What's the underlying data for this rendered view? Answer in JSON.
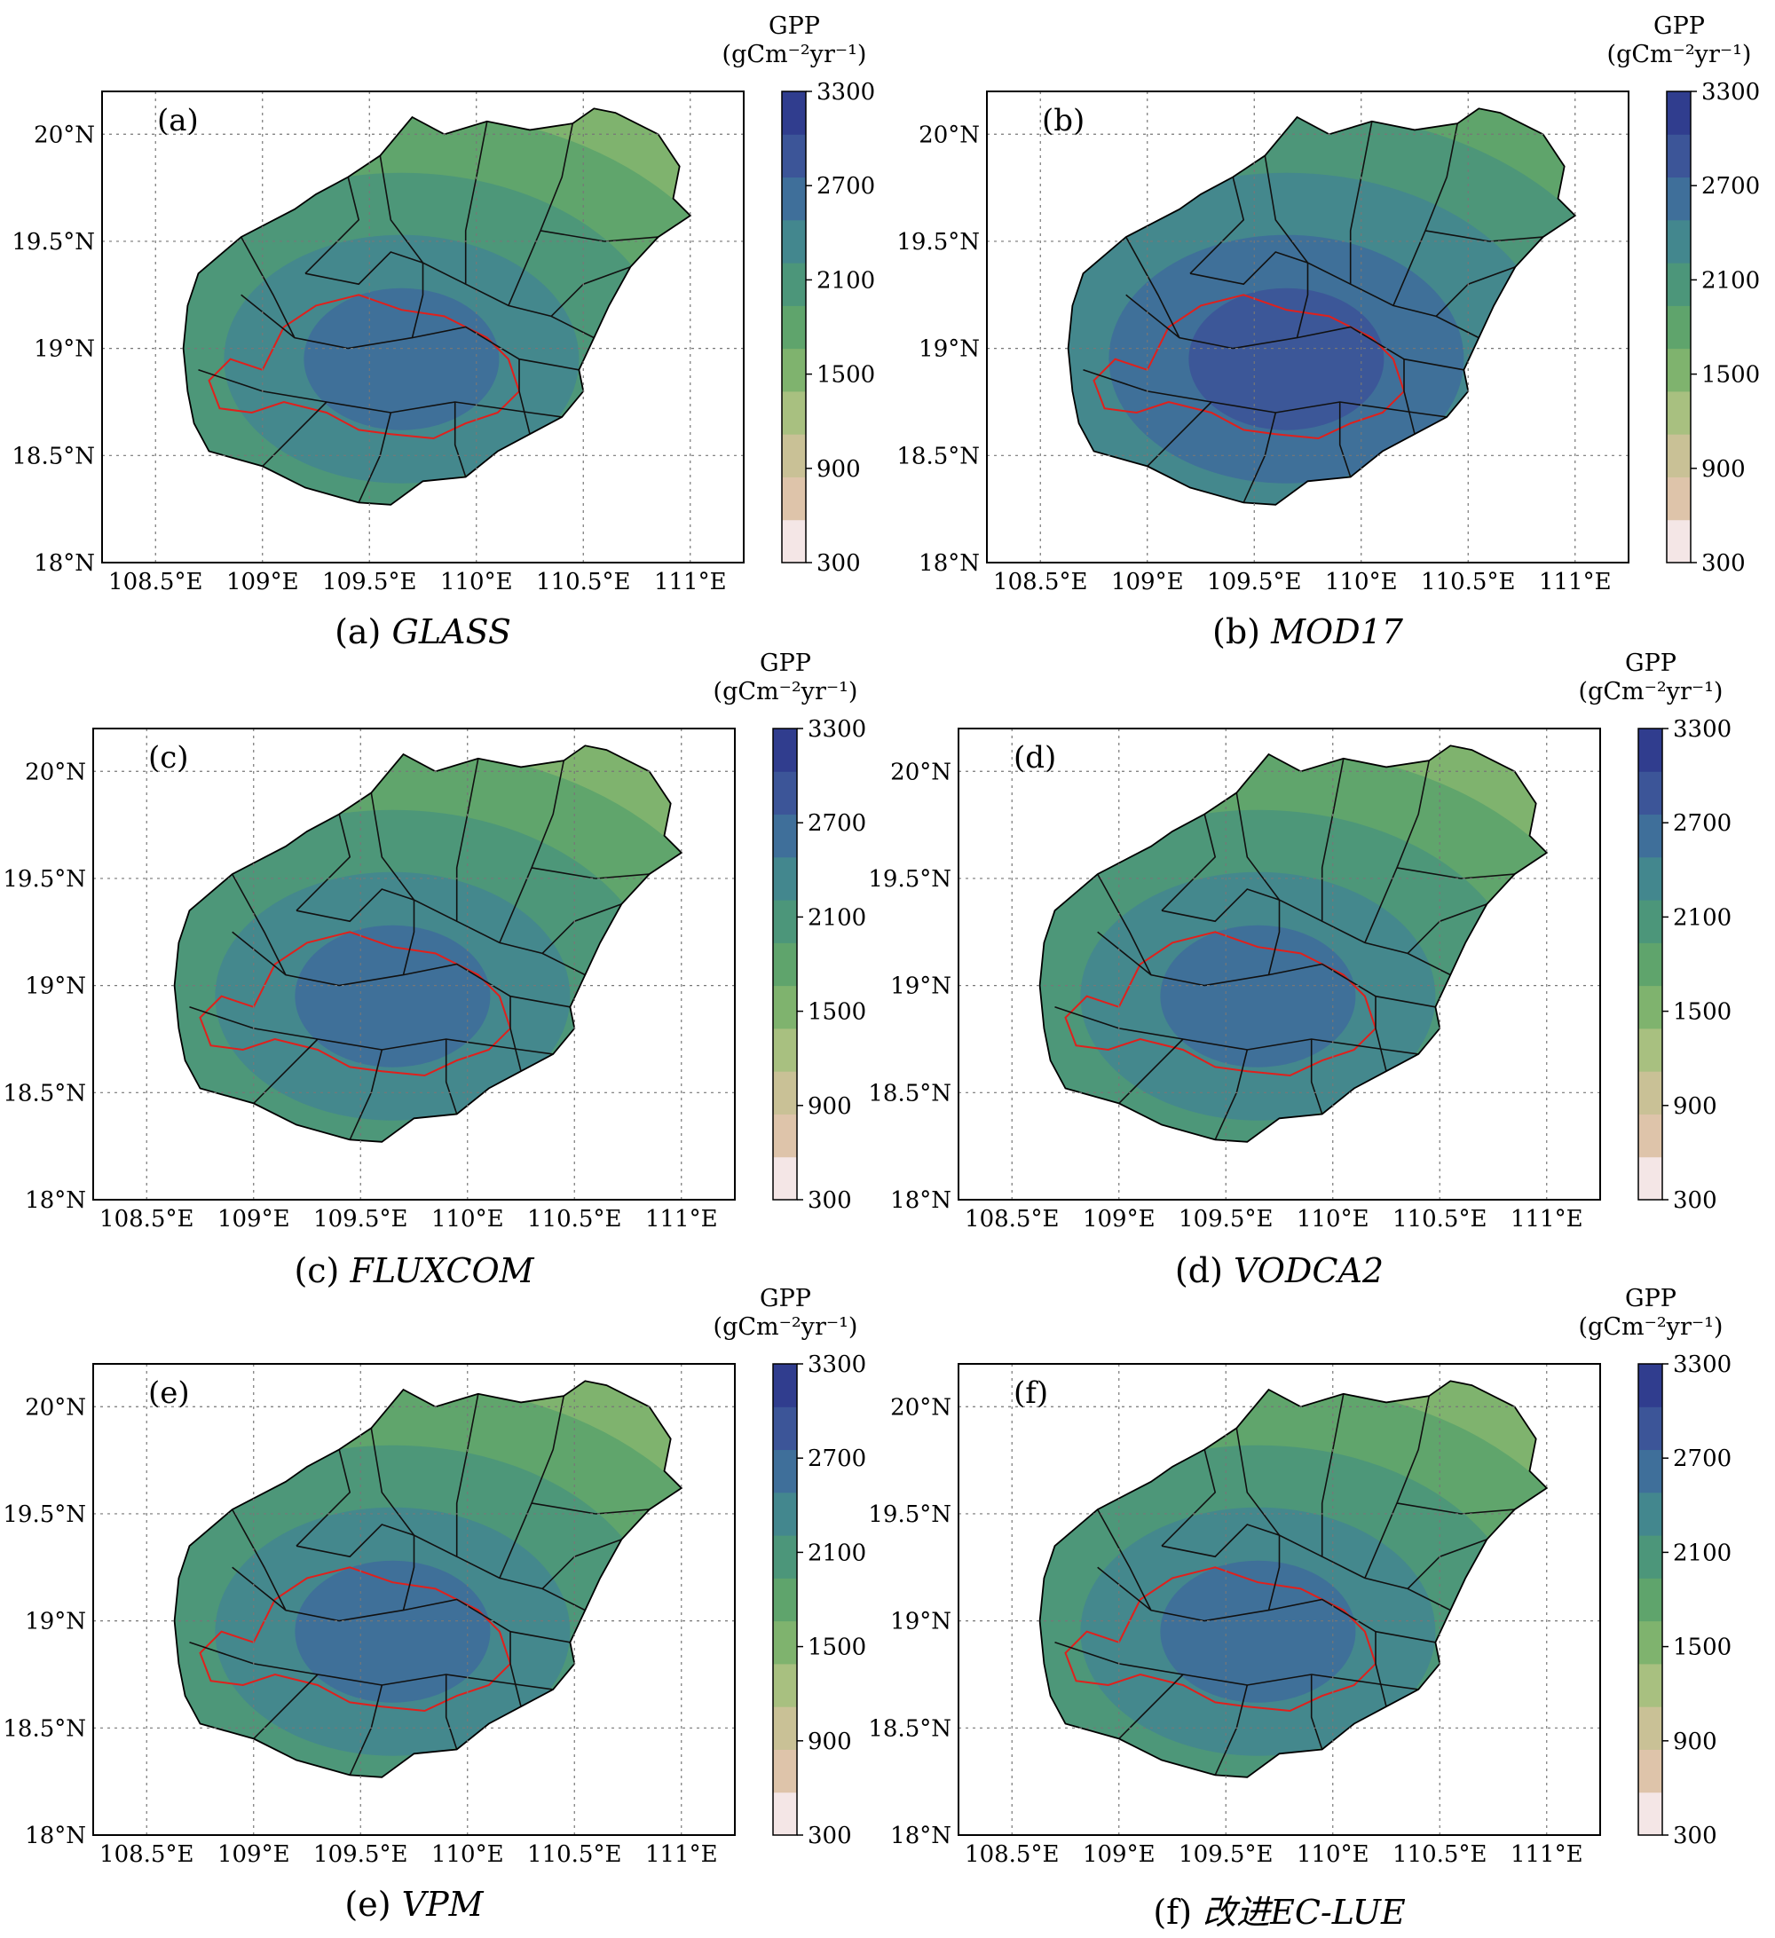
{
  "colorbar": {
    "title": "GPP",
    "unit": "(gCm⁻²yr⁻¹)",
    "ticks": [
      3300,
      2700,
      2100,
      1500,
      900,
      300
    ],
    "range": [
      300,
      3300
    ],
    "colors": [
      "#f4e6e6",
      "#dec4aa",
      "#c9c196",
      "#a8c080",
      "#7fb36e",
      "#5fa46c",
      "#4c967a",
      "#43878e",
      "#3f6f9a",
      "#3c5598",
      "#303d8e"
    ]
  },
  "axes": {
    "lon_labels": [
      "108.5°E",
      "109°E",
      "109.5°E",
      "110°E",
      "110.5°E",
      "111°E"
    ],
    "lon_values": [
      108.5,
      109.0,
      109.5,
      110.0,
      110.5,
      111.0
    ],
    "lat_labels": [
      "20°N",
      "19.5°N",
      "19°N",
      "18.5°N",
      "18°N"
    ],
    "lat_values": [
      20.0,
      19.5,
      19.0,
      18.5,
      18.0
    ],
    "lon_range": [
      108.25,
      111.25
    ],
    "lat_range": [
      18.0,
      20.2
    ],
    "grid": "dotted"
  },
  "panels": [
    {
      "id": "a",
      "label": "(a)",
      "caption_prefix": "(a)",
      "caption_name": "GLASS",
      "level": 0.55
    },
    {
      "id": "b",
      "label": "(b)",
      "caption_prefix": "(b)",
      "caption_name": "MOD17",
      "level": 0.72
    },
    {
      "id": "c",
      "label": "(c)",
      "caption_prefix": "(c)",
      "caption_name": "FLUXCOM",
      "level": 0.58
    },
    {
      "id": "d",
      "label": "(d)",
      "caption_prefix": "(d)",
      "caption_name": "VODCA2",
      "level": 0.62
    },
    {
      "id": "e",
      "label": "(e)",
      "caption_prefix": "(e)",
      "caption_name": "VPM",
      "level": 0.64
    },
    {
      "id": "f",
      "label": "(f)",
      "caption_prefix": "(f)",
      "caption_name": "改进EC-LUE",
      "level": 0.6
    }
  ]
}
